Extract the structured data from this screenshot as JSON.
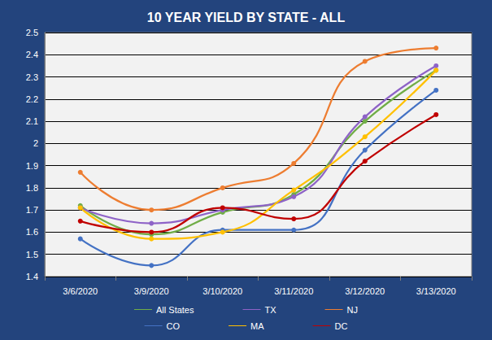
{
  "chart_data": {
    "type": "line",
    "title": "10 YEAR YIELD BY STATE - ALL",
    "categories": [
      "3/6/2020",
      "3/9/2020",
      "3/10/2020",
      "3/11/2020",
      "3/12/2020",
      "3/13/2020"
    ],
    "series": [
      {
        "name": "All States",
        "color": "#70ad47",
        "values": [
          1.72,
          1.59,
          1.69,
          1.77,
          2.1,
          2.33
        ]
      },
      {
        "name": "TX",
        "color": "#8e63c7",
        "values": [
          1.71,
          1.64,
          1.7,
          1.76,
          2.12,
          2.35
        ]
      },
      {
        "name": "NJ",
        "color": "#ed7d31",
        "values": [
          1.87,
          1.7,
          1.8,
          1.91,
          2.37,
          2.43
        ]
      },
      {
        "name": "CO",
        "color": "#4472c4",
        "values": [
          1.57,
          1.45,
          1.61,
          1.61,
          1.97,
          2.24
        ]
      },
      {
        "name": "MA",
        "color": "#ffc000",
        "values": [
          1.71,
          1.57,
          1.6,
          1.79,
          2.03,
          2.33
        ]
      },
      {
        "name": "DC",
        "color": "#c00000",
        "values": [
          1.65,
          1.6,
          1.71,
          1.66,
          1.92,
          2.13
        ]
      }
    ],
    "ylim": [
      1.4,
      2.5
    ],
    "yticks": [
      1.4,
      1.5,
      1.6,
      1.7,
      1.8,
      1.9,
      2,
      2.1,
      2.2,
      2.3,
      2.4,
      2.5
    ],
    "grid": true,
    "legend": "bottom",
    "marker": "circle",
    "line_style": "smooth"
  }
}
